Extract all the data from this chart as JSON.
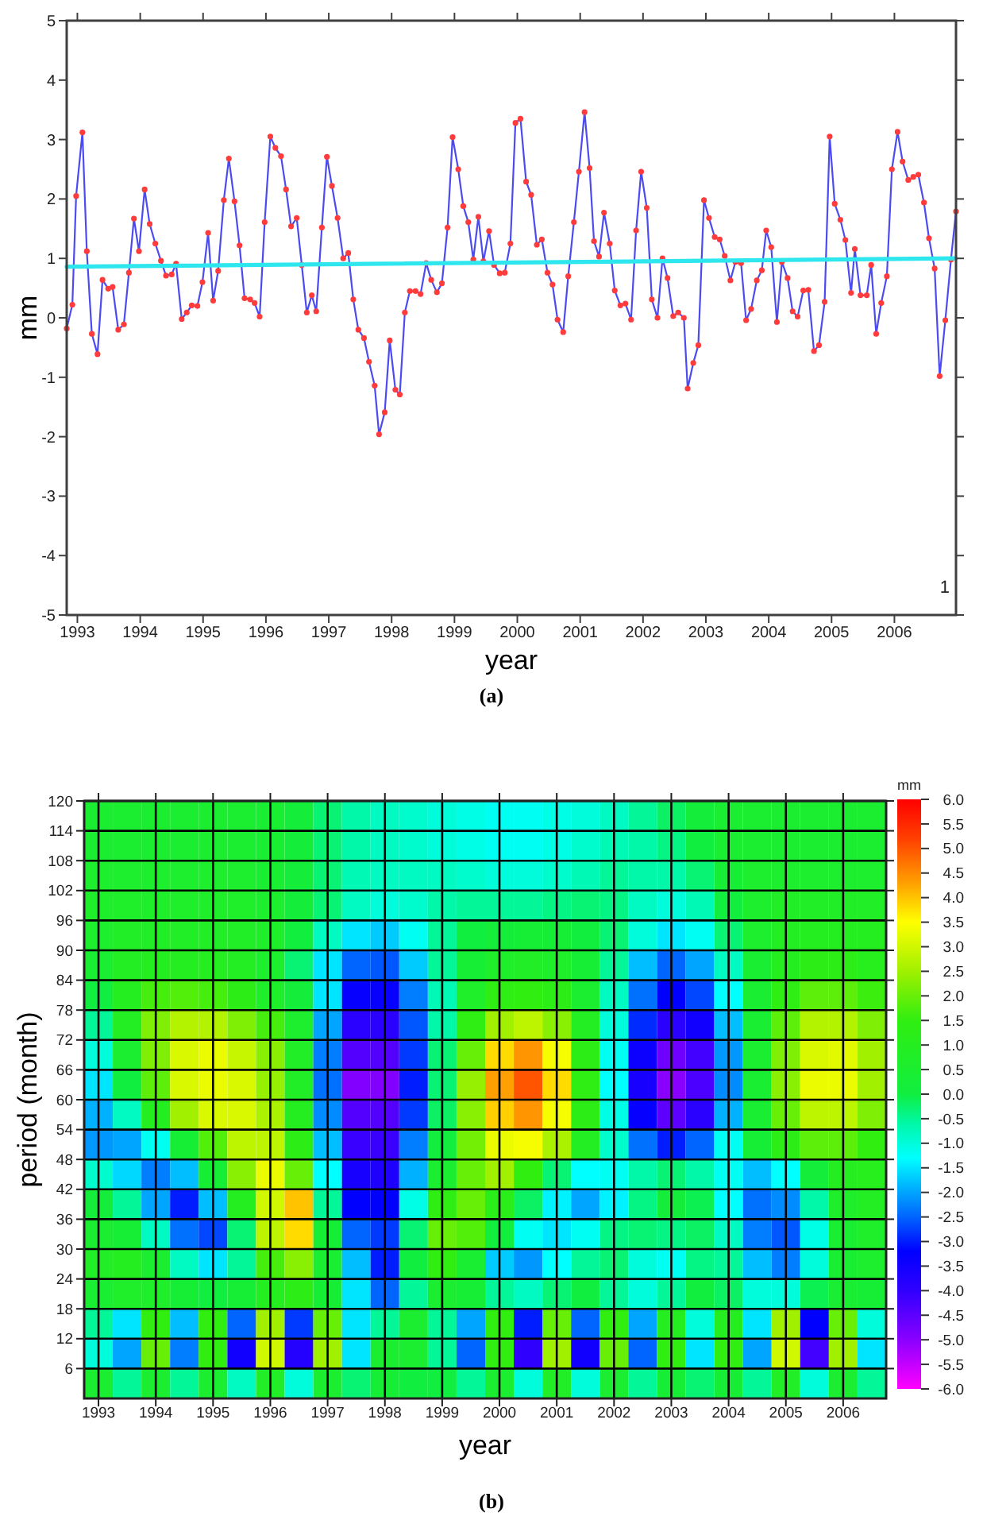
{
  "chart_data": [
    {
      "type": "line",
      "title": "(a)",
      "xlabel": "year",
      "ylabel": "mm",
      "xlim": [
        1992.83,
        2006.98
      ],
      "ylim": [
        -5,
        5
      ],
      "xticks": [
        1993,
        1994,
        1995,
        1996,
        1997,
        1998,
        1999,
        2000,
        2001,
        2002,
        2003,
        2004,
        2005,
        2006
      ],
      "yticks": [
        -5,
        -4,
        -3,
        -2,
        -1,
        0,
        1,
        2,
        3,
        4,
        5
      ],
      "annotations": [
        "1"
      ],
      "series": [
        {
          "color": "#4b4bf0",
          "marker": "circle",
          "x": [
            1992.83,
            1992.92,
            1992.98,
            1993.08,
            1993.15,
            1993.23,
            1993.32,
            1993.4,
            1993.49,
            1993.56,
            1993.65,
            1993.74,
            1993.82,
            1993.9,
            1993.98,
            1994.07,
            1994.15,
            1994.24,
            1994.33,
            1994.41,
            1994.5,
            1994.57,
            1994.66,
            1994.74,
            1994.82,
            1994.91,
            1994.99,
            1995.08,
            1995.16,
            1995.24,
            1995.33,
            1995.41,
            1995.5,
            1995.58,
            1995.66,
            1995.75,
            1995.82,
            1995.9,
            1995.98,
            1996.07,
            1996.15,
            1996.24,
            1996.32,
            1996.4,
            1996.49,
            1996.57,
            1996.65,
            1996.73,
            1996.8,
            1996.89,
            1996.97,
            1997.05,
            1997.14,
            1997.23,
            1997.31,
            1997.39,
            1997.47,
            1997.56,
            1997.64,
            1997.73,
            1997.8,
            1997.89,
            1997.97,
            1998.06,
            1998.13,
            1998.21,
            1998.29,
            1998.38,
            1998.46,
            1998.55,
            1998.63,
            1998.72,
            1998.8,
            1998.89,
            1998.97,
            1999.06,
            1999.14,
            1999.22,
            1999.3,
            1999.38,
            1999.46,
            1999.55,
            1999.63,
            1999.72,
            1999.8,
            1999.89,
            1999.97,
            2000.05,
            2000.14,
            2000.22,
            2000.31,
            2000.39,
            2000.48,
            2000.56,
            2000.64,
            2000.73,
            2000.81,
            2000.9,
            2000.98,
            2001.07,
            2001.15,
            2001.22,
            2001.3,
            2001.38,
            2001.47,
            2001.55,
            2001.64,
            2001.72,
            2001.81,
            2001.89,
            2001.97,
            2002.06,
            2002.14,
            2002.23,
            2002.31,
            2002.39,
            2002.48,
            2002.56,
            2002.65,
            2002.71,
            2002.8,
            2002.88,
            2002.97,
            2003.05,
            2003.14,
            2003.22,
            2003.3,
            2003.39,
            2003.47,
            2003.56,
            2003.64,
            2003.72,
            2003.81,
            2003.89,
            2003.96,
            2004.04,
            2004.13,
            2004.21,
            2004.3,
            2004.38,
            2004.46,
            2004.55,
            2004.63,
            2004.72,
            2004.8,
            2004.89,
            2004.97,
            2005.05,
            2005.14,
            2005.22,
            2005.31,
            2005.37,
            2005.46,
            2005.56,
            2005.63,
            2005.71,
            2005.79,
            2005.88,
            2005.96,
            2006.05,
            2006.13,
            2006.22,
            2006.3,
            2006.38,
            2006.47,
            2006.55,
            2006.64,
            2006.72,
            2006.81,
            2006.9,
            2006.98
          ],
          "values": [
            -0.18,
            0.22,
            2.05,
            3.12,
            1.12,
            -0.27,
            -0.61,
            0.64,
            0.49,
            0.52,
            -0.2,
            -0.11,
            0.76,
            1.67,
            1.12,
            2.16,
            1.58,
            1.25,
            0.96,
            0.71,
            0.73,
            0.91,
            -0.02,
            0.09,
            0.21,
            0.2,
            0.6,
            1.43,
            0.29,
            0.79,
            1.98,
            2.68,
            1.96,
            1.22,
            0.33,
            0.31,
            0.25,
            0.02,
            1.61,
            3.05,
            2.86,
            2.72,
            2.16,
            1.54,
            1.68,
            0.89,
            0.09,
            0.38,
            0.11,
            1.52,
            2.71,
            2.22,
            1.68,
            1.0,
            1.09,
            0.31,
            -0.2,
            -0.34,
            -0.74,
            -1.14,
            -1.96,
            -1.59,
            -0.38,
            -1.21,
            -1.29,
            0.09,
            0.45,
            0.45,
            0.4,
            0.92,
            0.64,
            0.43,
            0.58,
            1.52,
            3.04,
            2.5,
            1.88,
            1.61,
            0.98,
            1.7,
            0.95,
            1.46,
            0.89,
            0.75,
            0.76,
            1.25,
            3.28,
            3.35,
            2.29,
            2.07,
            1.23,
            1.32,
            0.76,
            0.56,
            -0.03,
            -0.24,
            0.7,
            1.61,
            2.46,
            3.46,
            2.52,
            1.29,
            1.03,
            1.77,
            1.25,
            0.46,
            0.21,
            0.24,
            -0.03,
            1.47,
            2.46,
            1.85,
            0.31,
            0.0,
            1.0,
            0.67,
            0.03,
            0.09,
            0.0,
            -1.19,
            -0.76,
            -0.46,
            1.98,
            1.68,
            1.36,
            1.32,
            1.04,
            0.63,
            0.94,
            0.92,
            -0.04,
            0.15,
            0.63,
            0.8,
            1.47,
            1.19,
            -0.07,
            0.94,
            0.67,
            0.11,
            0.02,
            0.46,
            0.47,
            -0.56,
            -0.46,
            0.27,
            3.05,
            1.92,
            1.65,
            1.31,
            0.42,
            1.16,
            0.38,
            0.38,
            0.89,
            -0.27,
            0.25,
            0.7,
            2.5,
            3.13,
            2.63,
            2.32,
            2.37,
            2.41,
            1.94,
            1.34,
            0.83,
            -0.98,
            -0.04,
            0.98,
            1.79
          ]
        },
        {
          "color": "#2ee6ee",
          "x": [
            1992.83,
            2006.98
          ],
          "values": [
            0.86,
            1.0
          ]
        }
      ]
    },
    {
      "type": "heatmap",
      "title": "(b)",
      "xlabel": "year",
      "ylabel": "period (month)",
      "clabel": "mm",
      "grid": true,
      "x": [
        1993.0,
        1993.5,
        1994.0,
        1994.5,
        1995.0,
        1995.5,
        1996.0,
        1996.5,
        1997.0,
        1997.5,
        1998.0,
        1998.5,
        1999.0,
        1999.5,
        2000.0,
        2000.5,
        2001.0,
        2001.5,
        2002.0,
        2002.5,
        2003.0,
        2003.5,
        2004.0,
        2004.5,
        2005.0,
        2005.5,
        2006.0,
        2006.5
      ],
      "xlim": [
        1992.75,
        2006.75
      ],
      "xticks": [
        1993,
        1994,
        1995,
        1996,
        1997,
        1998,
        1999,
        2000,
        2001,
        2002,
        2003,
        2004,
        2005,
        2006
      ],
      "ylim": [
        0,
        120
      ],
      "yticks": [
        6,
        12,
        18,
        24,
        30,
        36,
        42,
        48,
        54,
        60,
        66,
        72,
        78,
        84,
        90,
        96,
        102,
        108,
        114,
        120
      ],
      "clim": [
        -6,
        6
      ],
      "cticks": [
        {
          "value": 6,
          "label": "6.0"
        },
        5.5,
        {
          "value": 5,
          "label": "5.0"
        },
        4.5,
        {
          "value": 4,
          "label": "4.0"
        },
        3.5,
        {
          "value": 3,
          "label": "3.0"
        },
        2.5,
        {
          "value": 2,
          "label": "2.0"
        },
        1.5,
        {
          "value": 1,
          "label": "1.0"
        },
        0.5,
        {
          "value": 0,
          "label": "0.0"
        },
        -0.5,
        {
          "value": -1,
          "label": "-1.0"
        },
        -1.5,
        {
          "value": -2,
          "label": "-2.0"
        },
        -2.5,
        {
          "value": -3,
          "label": "-3.0"
        },
        -3.5,
        {
          "value": -4,
          "label": "-4.0"
        },
        -4.5,
        {
          "value": -5,
          "label": "-5.0"
        },
        -5.5,
        {
          "value": -6,
          "label": "-6.0"
        }
      ],
      "cells": [
        [
          0.5,
          0.5,
          0.5,
          0.5,
          0.5,
          0.5,
          0.4,
          0.2,
          -0.3,
          -0.6,
          -0.8,
          -0.9,
          -1.0,
          -1.1,
          -1.2,
          -1.2,
          -1.1,
          -1.0,
          -0.8,
          -0.5,
          -0.2,
          0.2,
          0.4,
          0.5,
          0.5,
          0.5,
          0.5,
          0.5
        ],
        [
          0.5,
          0.5,
          0.5,
          0.5,
          0.5,
          0.5,
          0.4,
          0.2,
          -0.3,
          -0.6,
          -0.8,
          -0.9,
          -1.0,
          -1.1,
          -1.2,
          -1.2,
          -1.1,
          -0.9,
          -0.7,
          -0.6,
          -0.4,
          0.0,
          0.4,
          0.5,
          0.5,
          0.5,
          0.5,
          0.5
        ],
        [
          0.6,
          0.6,
          0.6,
          0.6,
          0.6,
          0.6,
          0.4,
          0.2,
          -0.3,
          -0.7,
          -0.8,
          -0.8,
          -0.8,
          -0.9,
          -1.0,
          -1.0,
          -0.9,
          -0.7,
          -0.5,
          -0.6,
          -0.6,
          -0.3,
          0.3,
          0.6,
          0.6,
          0.6,
          0.6,
          0.6
        ],
        [
          0.7,
          0.7,
          0.7,
          0.7,
          0.7,
          0.7,
          0.6,
          0.2,
          -0.3,
          -0.8,
          -1.0,
          -0.9,
          -0.6,
          -0.5,
          -0.5,
          -0.5,
          -0.4,
          -0.3,
          -0.4,
          -0.8,
          -1.0,
          -0.7,
          0.1,
          0.6,
          0.8,
          0.8,
          0.8,
          0.8
        ],
        [
          0.6,
          0.8,
          0.8,
          0.8,
          0.8,
          0.8,
          0.7,
          0.1,
          -0.8,
          -1.5,
          -1.7,
          -1.2,
          -0.5,
          0.0,
          0.2,
          0.3,
          0.3,
          0.1,
          -0.3,
          -1.0,
          -1.5,
          -1.2,
          -0.3,
          0.6,
          0.9,
          1.0,
          1.0,
          1.0
        ],
        [
          0.4,
          0.9,
          1.0,
          1.0,
          1.0,
          0.9,
          0.6,
          -0.3,
          -1.5,
          -2.5,
          -2.6,
          -1.7,
          -0.5,
          0.3,
          0.7,
          0.8,
          0.7,
          0.3,
          -0.5,
          -1.8,
          -2.5,
          -2.0,
          -0.8,
          0.4,
          1.0,
          1.3,
          1.3,
          1.1
        ],
        [
          0.0,
          1.0,
          1.7,
          1.8,
          1.7,
          1.3,
          0.7,
          0.2,
          -1.5,
          -3.3,
          -3.3,
          -2.3,
          -0.7,
          0.7,
          1.4,
          1.5,
          1.3,
          0.5,
          -0.8,
          -2.4,
          -3.2,
          -2.7,
          -1.3,
          0.4,
          1.4,
          1.9,
          1.9,
          1.6
        ],
        [
          -0.5,
          0.9,
          2.2,
          2.7,
          2.7,
          2.2,
          1.7,
          0.6,
          -2.0,
          -3.9,
          -3.9,
          -2.6,
          -0.6,
          1.4,
          2.5,
          2.8,
          2.3,
          0.9,
          -1.0,
          -2.9,
          -3.9,
          -3.5,
          -1.8,
          0.4,
          1.9,
          2.7,
          2.7,
          2.2
        ],
        [
          -1.0,
          0.5,
          2.2,
          3.1,
          3.3,
          2.9,
          2.3,
          0.8,
          -2.3,
          -4.4,
          -4.4,
          -2.8,
          -0.3,
          2.0,
          3.8,
          4.4,
          3.4,
          1.3,
          -1.2,
          -3.4,
          -4.7,
          -4.2,
          -2.1,
          0.5,
          2.2,
          3.1,
          3.2,
          2.5
        ],
        [
          -1.5,
          0.0,
          1.9,
          3.1,
          3.3,
          3.1,
          2.4,
          0.8,
          -2.4,
          -4.9,
          -4.9,
          -3.0,
          -0.3,
          2.4,
          4.3,
          5.0,
          3.8,
          1.4,
          -1.3,
          -3.6,
          -5.0,
          -4.3,
          -2.2,
          0.4,
          2.3,
          3.3,
          3.3,
          2.5
        ],
        [
          -1.9,
          -0.8,
          1.0,
          2.5,
          3.1,
          3.1,
          2.6,
          1.0,
          -2.2,
          -4.4,
          -4.4,
          -2.8,
          -0.2,
          2.3,
          3.9,
          4.4,
          3.4,
          1.3,
          -1.1,
          -3.3,
          -4.5,
          -3.9,
          -1.9,
          0.4,
          2.0,
          2.8,
          2.8,
          2.2
        ],
        [
          -2.1,
          -2.0,
          -1.2,
          0.3,
          1.8,
          2.8,
          2.8,
          1.3,
          -1.8,
          -4.1,
          -4.1,
          -2.3,
          0.1,
          2.1,
          3.3,
          3.4,
          2.6,
          0.9,
          -0.9,
          -2.4,
          -3.0,
          -2.5,
          -1.2,
          0.3,
          1.3,
          1.9,
          1.9,
          1.5
        ],
        [
          -0.9,
          -1.6,
          -2.3,
          -1.8,
          0.3,
          2.3,
          3.3,
          2.0,
          -1.3,
          -3.6,
          -3.7,
          -1.9,
          0.5,
          2.0,
          2.5,
          1.5,
          -0.3,
          -1.3,
          -1.2,
          -0.6,
          -0.3,
          -0.6,
          -1.2,
          -1.8,
          -1.3,
          0.2,
          1.0,
          1.1
        ],
        [
          0.2,
          -0.5,
          -2.0,
          -3.0,
          -1.8,
          1.0,
          3.0,
          4.0,
          -0.5,
          -3.2,
          -3.2,
          -1.1,
          1.4,
          2.0,
          1.2,
          -0.2,
          -1.4,
          -2.0,
          -1.4,
          -0.4,
          0.2,
          -0.1,
          -1.3,
          -2.4,
          -2.2,
          -0.6,
          0.7,
          0.9
        ],
        [
          0.5,
          0.3,
          -0.8,
          -2.4,
          -2.7,
          -0.3,
          2.8,
          3.8,
          0.3,
          -2.5,
          -2.8,
          -0.3,
          2.0,
          1.8,
          0.1,
          -1.2,
          -1.5,
          -1.2,
          -0.4,
          -0.3,
          -0.4,
          -0.2,
          -0.8,
          -2.3,
          -2.6,
          -1.1,
          0.4,
          0.7
        ],
        [
          0.8,
          1.0,
          0.5,
          -0.8,
          -1.5,
          -0.5,
          1.7,
          2.3,
          0.4,
          -1.8,
          -3.0,
          0.0,
          1.5,
          0.4,
          -1.7,
          -2.1,
          -1.3,
          -0.5,
          -0.3,
          -1.0,
          -1.2,
          -0.4,
          -0.5,
          -1.8,
          -2.3,
          -1.0,
          0.4,
          0.6
        ],
        [
          0.4,
          0.7,
          0.7,
          0.3,
          0.0,
          0.3,
          1.0,
          1.3,
          0.3,
          -1.5,
          -2.5,
          -0.5,
          0.5,
          0.3,
          -0.5,
          -0.8,
          -0.3,
          0.0,
          -0.5,
          -1.0,
          -0.5,
          0.1,
          -0.2,
          -1.0,
          -1.0,
          -0.1,
          0.4,
          0.3
        ],
        [
          -0.5,
          -1.5,
          1.5,
          -1.8,
          1.5,
          -2.5,
          2.5,
          -2.8,
          2.0,
          -1.5,
          -0.5,
          0.5,
          -0.5,
          -2.0,
          1.5,
          -3.0,
          2.0,
          -2.5,
          1.5,
          -2.0,
          1.0,
          -1.0,
          1.0,
          -1.5,
          2.5,
          -3.2,
          2.0,
          -1.0
        ],
        [
          -1.0,
          -2.0,
          2.0,
          -2.3,
          1.5,
          -3.5,
          3.0,
          -3.8,
          2.5,
          -1.5,
          0.5,
          0.5,
          -0.5,
          -2.5,
          1.5,
          -4.0,
          2.5,
          -3.5,
          2.0,
          -2.5,
          1.5,
          -1.5,
          1.5,
          -2.0,
          3.0,
          -4.2,
          2.5,
          -1.5
        ],
        [
          0.5,
          -0.5,
          0.5,
          -0.5,
          0.5,
          -0.8,
          0.8,
          -1.0,
          0.5,
          -0.3,
          0.3,
          0.0,
          0.0,
          -0.5,
          0.5,
          -1.0,
          0.8,
          -1.0,
          0.5,
          -0.5,
          0.3,
          -0.3,
          0.3,
          -0.5,
          0.8,
          -1.0,
          0.5,
          -0.5
        ]
      ]
    }
  ]
}
